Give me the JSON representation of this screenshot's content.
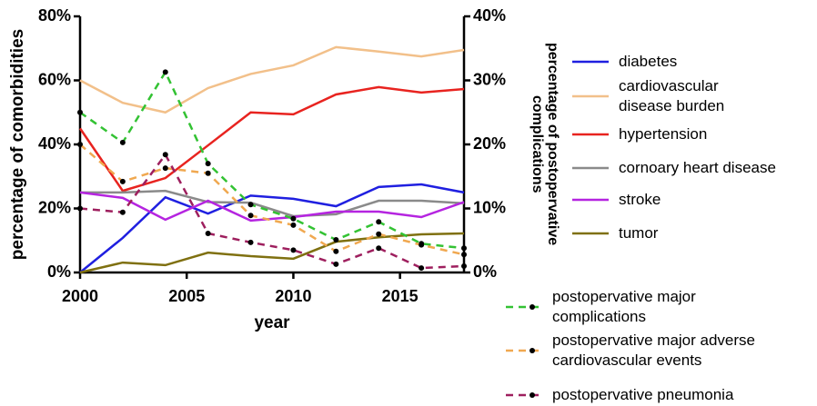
{
  "chart_data": {
    "type": "line",
    "xlabel": "year",
    "ylabel": "percentage of comorbidities",
    "y2label": "percentage of postopervative complications",
    "x": [
      2000,
      2002,
      2004,
      2006,
      2008,
      2010,
      2012,
      2014,
      2016,
      2018
    ],
    "xlim": [
      2000,
      2018
    ],
    "xticks": [
      2000,
      2005,
      2010,
      2015
    ],
    "ylim": [
      0,
      80
    ],
    "yticks": [
      {
        "value": 0,
        "label": "0%"
      },
      {
        "value": 20,
        "label": "20%"
      },
      {
        "value": 40,
        "label": "40%"
      },
      {
        "value": 60,
        "label": "60%"
      },
      {
        "value": 80,
        "label": "80%"
      }
    ],
    "y2lim": [
      0,
      40
    ],
    "y2ticks": [
      {
        "value": 0,
        "label": "0%"
      },
      {
        "value": 10,
        "label": "10%"
      },
      {
        "value": 20,
        "label": "20%"
      },
      {
        "value": 30,
        "label": "30%"
      },
      {
        "value": 40,
        "label": "40%"
      }
    ],
    "series": [
      {
        "name": "diabetes",
        "color": "#1f1fe0",
        "values": [
          0,
          10.8,
          23.5,
          18.4,
          24,
          23,
          20.7,
          26.7,
          27.5,
          25
        ]
      },
      {
        "name": "cardiovascular disease burden",
        "color": "#f2c08a",
        "values": [
          60,
          53,
          50,
          57.6,
          62,
          64.7,
          70.4,
          69,
          67.5,
          69.5
        ]
      },
      {
        "name": "hypertension",
        "color": "#e8231f",
        "values": [
          45,
          25.5,
          29.5,
          39.7,
          50,
          49.4,
          55.6,
          57.9,
          56.2,
          57.3
        ]
      },
      {
        "name": "cornoary heart disease",
        "color": "#8a8a8a",
        "values": [
          25,
          25,
          25.5,
          22,
          21.8,
          17.6,
          18.2,
          22.4,
          22.4,
          21.6
        ]
      },
      {
        "name": "stroke",
        "color": "#b524e0",
        "values": [
          25,
          23.3,
          16.5,
          22.4,
          16.2,
          17.3,
          19,
          19,
          17.3,
          22
        ]
      },
      {
        "name": "tumor",
        "color": "#7f7010",
        "values": [
          0,
          3.1,
          2.3,
          6.2,
          5.1,
          4.3,
          9.6,
          11,
          11.9,
          12.2
        ]
      },
      {
        "name": "postopervative major complications",
        "color": "#33c233",
        "axis": "y2",
        "line_style": "dashed",
        "values": [
          25,
          20.3,
          31.3,
          17,
          10.6,
          8.4,
          5.1,
          7.9,
          4.5,
          3.8
        ]
      },
      {
        "name": "postopervative major adverse cardiovascular events",
        "color": "#f0a850",
        "axis": "y2",
        "line_style": "dashed",
        "values": [
          20,
          14.2,
          16.3,
          15.5,
          8.9,
          7.4,
          3.3,
          6,
          4.3,
          2.8
        ]
      },
      {
        "name": "postopervative pneumonia",
        "color": "#9e1f5e",
        "axis": "y2",
        "line_style": "dashed",
        "values": [
          10,
          9.4,
          18.4,
          6.1,
          4.7,
          3.5,
          1.3,
          3.8,
          0.7,
          1
        ]
      }
    ]
  }
}
